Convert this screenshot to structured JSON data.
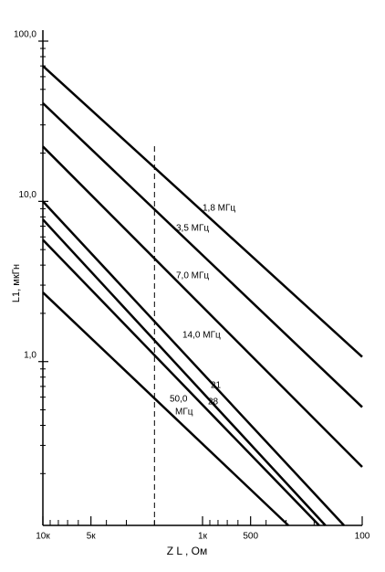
{
  "chart_data": {
    "type": "line",
    "x_log": true,
    "y_log": true,
    "xlabel": "Z L , Ом",
    "ylabel": "L1, мкГн",
    "xlim": [
      10000,
      100
    ],
    "ylim": [
      0.095,
      100
    ],
    "xticks": [
      {
        "value": 10000,
        "label": "10к"
      },
      {
        "value": 5000,
        "label": "5к"
      },
      {
        "value": 1000,
        "label": "1к"
      },
      500,
      100
    ],
    "xminor_ticks": [
      9000,
      8000,
      7000,
      6000,
      4000,
      3000,
      2000,
      900,
      800,
      700,
      600,
      400,
      300,
      200
    ],
    "yticks": [
      {
        "value": 100,
        "label": "100,0"
      },
      {
        "value": 10,
        "label": "10,0"
      },
      {
        "value": 1,
        "label": "1,0"
      }
    ],
    "yminor_ticks": [
      90,
      80,
      70,
      60,
      50,
      40,
      30,
      20,
      9,
      8,
      7,
      6,
      5,
      4,
      3,
      2,
      0.9,
      0.8,
      0.7,
      0.6,
      0.5,
      0.4,
      0.3,
      0.2
    ],
    "reference_line_x": 2000,
    "series": [
      {
        "name": "1,8  МГц",
        "color": "#000000",
        "x": [
          10000,
          100
        ],
        "values": [
          70,
          1.07
        ]
      },
      {
        "name": "3,5 МГц",
        "color": "#000000",
        "x": [
          10000,
          100
        ],
        "values": [
          41,
          0.52
        ]
      },
      {
        "name": "7,0 МГц",
        "color": "#000000",
        "x": [
          10000,
          100
        ],
        "values": [
          22,
          0.22
        ]
      },
      {
        "name": "14,0 МГц",
        "color": "#000000",
        "x": [
          10000,
          130
        ],
        "values": [
          10,
          0.095
        ]
      },
      {
        "name": "21",
        "color": "#000000",
        "x": [
          10000,
          170
        ],
        "values": [
          7.7,
          0.095
        ]
      },
      {
        "name": "28",
        "color": "#000000",
        "x": [
          10000,
          186
        ],
        "values": [
          5.75,
          0.095
        ]
      },
      {
        "name": [
          "50,0",
          "МГц"
        ],
        "color": "#000000",
        "x": [
          10000,
          290
        ],
        "values": [
          2.7,
          0.095
        ]
      }
    ]
  }
}
